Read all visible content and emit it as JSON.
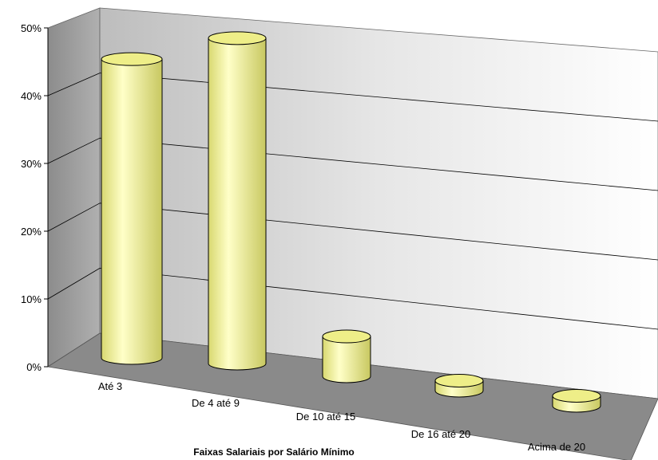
{
  "chart_data": {
    "type": "bar",
    "style": "3d-cylinder",
    "categories": [
      "Até  3",
      "De  4 até  9",
      "De 10 até 15",
      "De 16 até 20",
      "Acima de 20"
    ],
    "values": [
      45,
      49,
      6,
      1.5,
      1.5
    ],
    "xlabel": "Faixas Salariais por Salário Mínimo",
    "ylabel": "",
    "ylim": [
      0,
      50
    ],
    "yticks": [
      "0%",
      "10%",
      "20%",
      "30%",
      "40%",
      "50%"
    ],
    "grid": true,
    "legend": "none",
    "colors": {
      "bar_fill": "#ffff99",
      "bar_edge": "#000000",
      "back_wall": "#e8e8e8",
      "side_wall": "#a0a0a0",
      "floor": "#8a8a8a"
    }
  }
}
